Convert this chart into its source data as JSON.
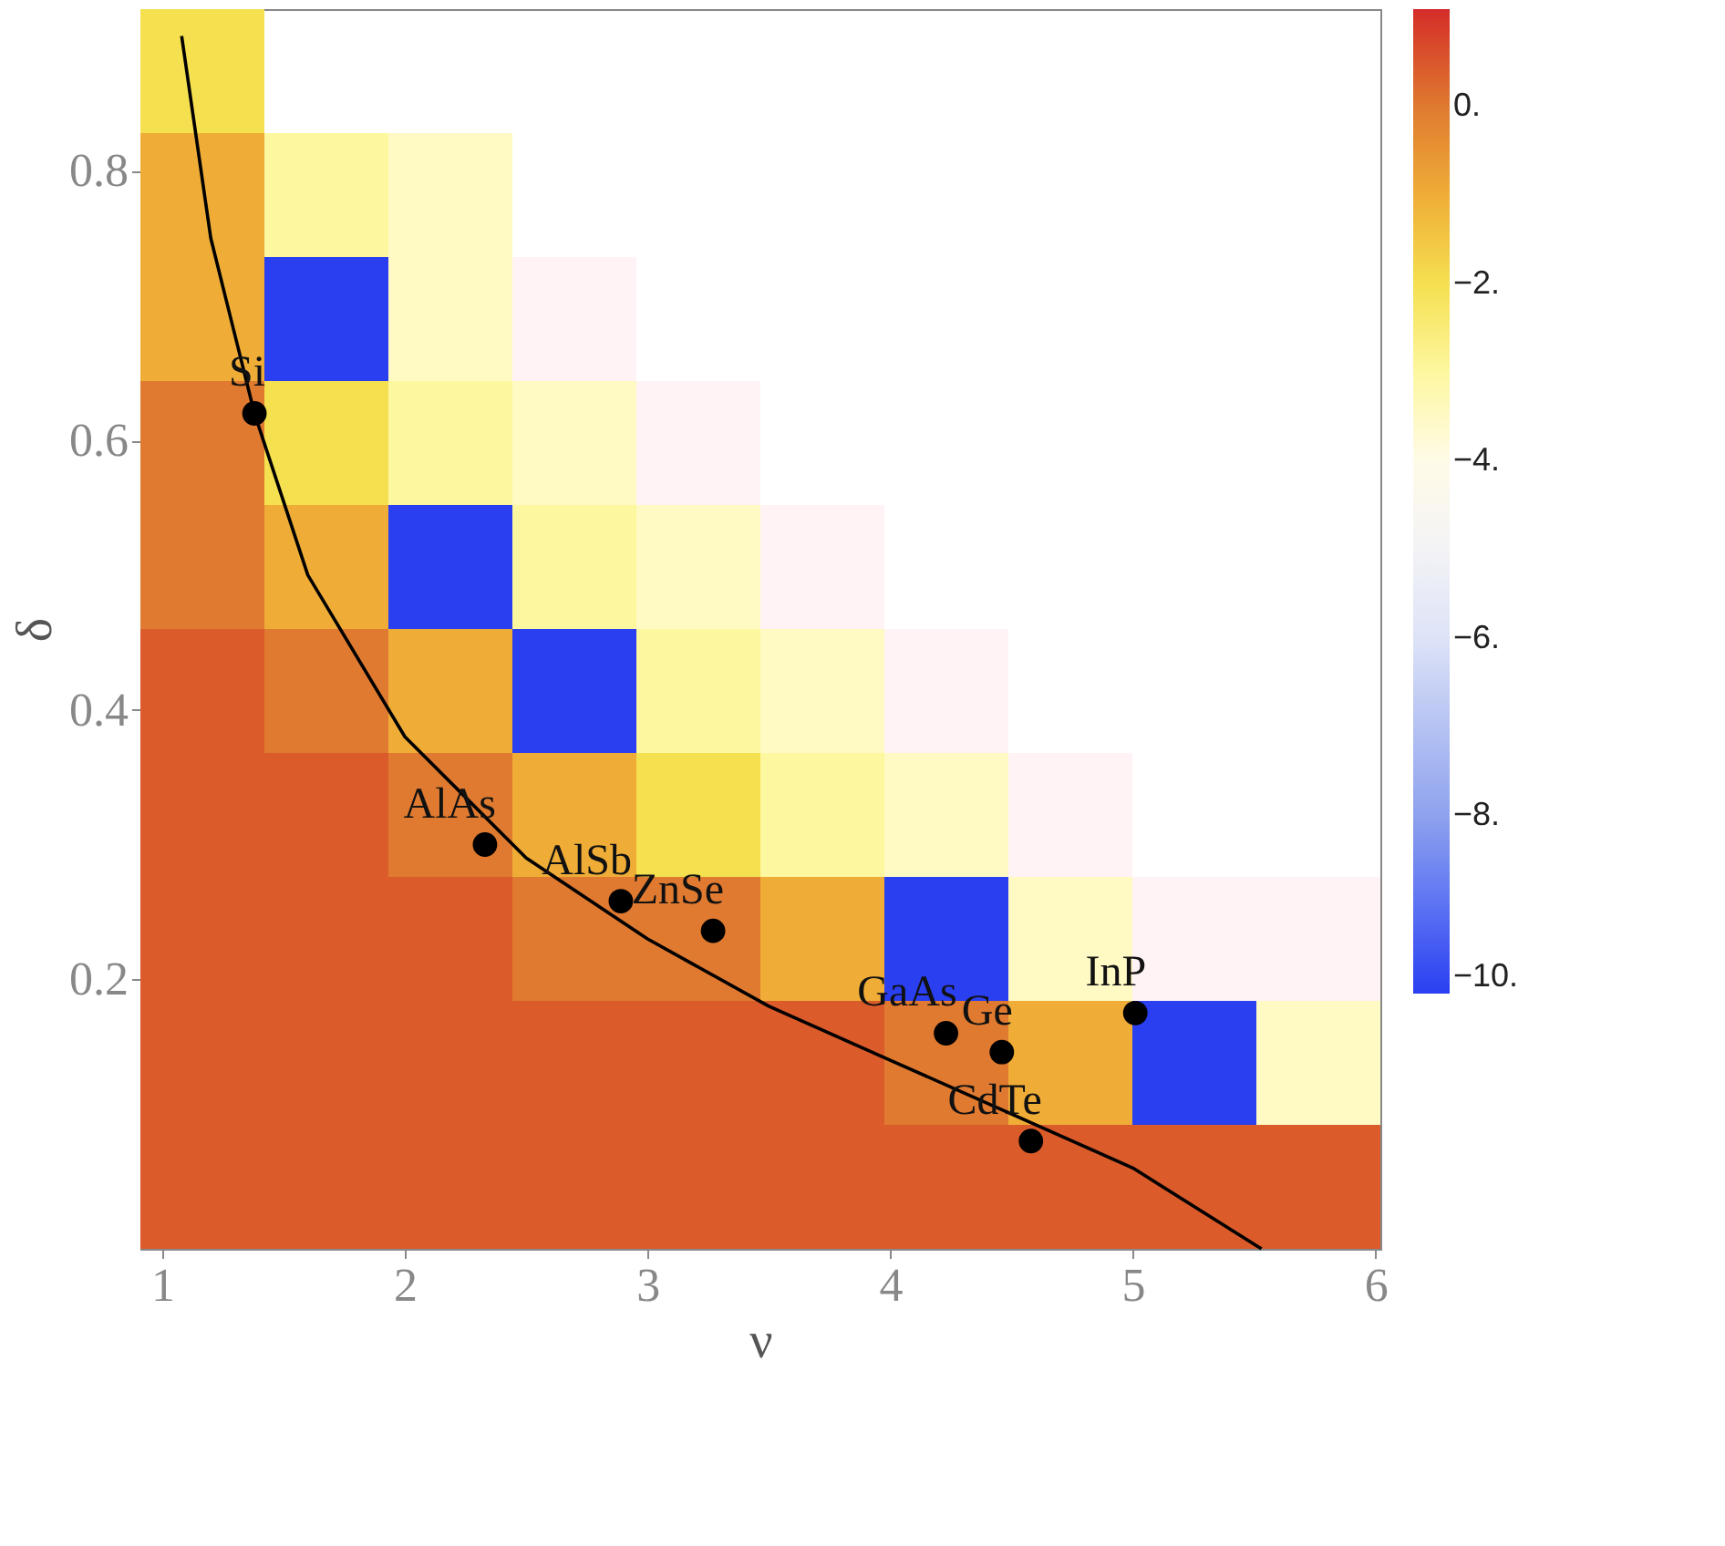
{
  "chart_data": {
    "type": "heatmap",
    "xlabel": "ν",
    "ylabel": "δ",
    "xlim": [
      0.91,
      6.02
    ],
    "ylim": [
      0,
      0.92
    ],
    "xticks": [
      1,
      2,
      3,
      4,
      5,
      6
    ],
    "yticks": [
      0.2,
      0.4,
      0.6,
      0.8
    ],
    "cells": [
      [
        -2,
        null,
        null,
        null,
        null,
        null,
        null,
        null,
        null,
        null
      ],
      [
        -1,
        -3,
        -3.5,
        null,
        null,
        null,
        null,
        null,
        null,
        null
      ],
      [
        -1,
        -10,
        -3.5,
        -4.5,
        null,
        null,
        null,
        null,
        null,
        null
      ],
      [
        0,
        -2,
        -3,
        -3.5,
        -4.5,
        null,
        null,
        null,
        null,
        null
      ],
      [
        0,
        -1,
        -10,
        -3,
        -3.5,
        -4.5,
        null,
        null,
        null,
        null
      ],
      [
        0.5,
        0,
        -1,
        -10,
        -3,
        -3.5,
        -4.5,
        null,
        null,
        null
      ],
      [
        0.5,
        0.5,
        0,
        -1,
        -2,
        -3,
        -3.5,
        -4.5,
        null,
        null
      ],
      [
        0.5,
        0.5,
        0.5,
        0,
        0,
        -1,
        -10,
        -3.5,
        -4.5,
        -4.5
      ],
      [
        0.5,
        0.5,
        0.5,
        0.5,
        0.5,
        0.5,
        0,
        -1,
        -10,
        -3.5
      ],
      [
        0.5,
        0.5,
        0.5,
        0.5,
        0.5,
        0.5,
        0.5,
        0.5,
        0.5,
        0.5
      ]
    ],
    "clim": [
      -10,
      1.1
    ],
    "cticks": [
      {
        "value": 0,
        "label": "0."
      },
      {
        "value": -2,
        "label": "−2."
      },
      {
        "value": -4,
        "label": "−4."
      },
      {
        "value": -6,
        "label": "−6."
      },
      {
        "value": -8,
        "label": "−8."
      },
      {
        "value": -10,
        "label": "−10."
      }
    ],
    "series": [
      {
        "type": "line",
        "color": "#000000",
        "x": [
          1.08,
          1.2,
          1.38,
          1.6,
          2,
          2.5,
          3,
          3.5,
          4,
          4.5,
          5,
          5.53
        ],
        "values": [
          0.9,
          0.75,
          0.62,
          0.5,
          0.38,
          0.29,
          0.23,
          0.18,
          0.14,
          0.1,
          0.06,
          0.0
        ]
      },
      {
        "type": "scatter",
        "color": "#000000",
        "marker": "circle",
        "x": [
          1.38,
          2.33,
          2.89,
          3.27,
          4.23,
          4.46,
          5.01,
          4.58
        ],
        "values": [
          0.62,
          0.3,
          0.258,
          0.236,
          0.16,
          0.146,
          0.175,
          0.08
        ]
      }
    ],
    "annotations": [
      {
        "text": "Si",
        "x": 1.38,
        "y": 0.62
      },
      {
        "text": "AlAs",
        "x": 2.33,
        "y": 0.3
      },
      {
        "text": "AlSb",
        "x": 2.89,
        "y": 0.258
      },
      {
        "text": "ZnSe",
        "x": 3.27,
        "y": 0.236
      },
      {
        "text": "GaAs",
        "x": 4.23,
        "y": 0.16
      },
      {
        "text": "Ge",
        "x": 4.46,
        "y": 0.146
      },
      {
        "text": "InP",
        "x": 5.01,
        "y": 0.175
      },
      {
        "text": "CdTe",
        "x": 4.58,
        "y": 0.08
      }
    ]
  }
}
